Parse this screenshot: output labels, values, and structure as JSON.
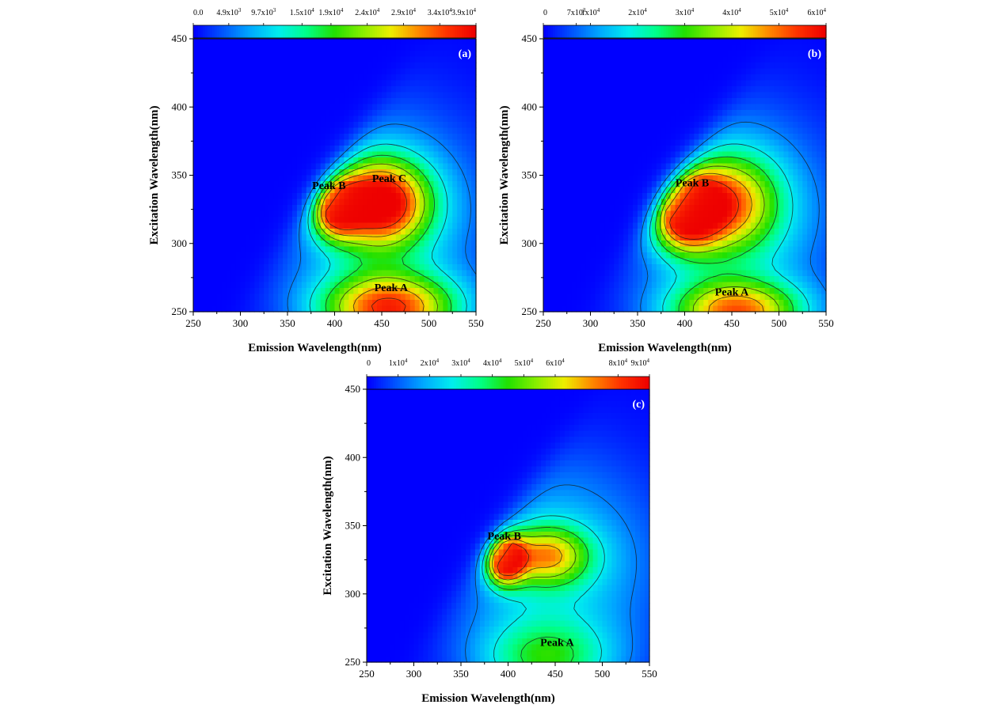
{
  "chart_data": [
    {
      "type": "heatmap",
      "panel": "(a)",
      "xlabel": "Emission Wavelength(nm)",
      "ylabel": "Excitation Wavelength(nm)",
      "xlim": [
        250,
        550
      ],
      "ylim": [
        250,
        450
      ],
      "xticks": [
        "250",
        "300",
        "350",
        "400",
        "450",
        "500",
        "550"
      ],
      "yticks": [
        "250",
        "300",
        "350",
        "400",
        "450"
      ],
      "colorbar": {
        "range": [
          0,
          39000
        ],
        "tick_values": [
          0,
          4900,
          9700,
          15000,
          19000,
          24000,
          29000,
          34000,
          39000
        ],
        "ticks": [
          {
            "base": "0.0",
            "exp": ""
          },
          {
            "base": "4.9x10",
            "exp": "3"
          },
          {
            "base": "9.7x10",
            "exp": "3"
          },
          {
            "base": "1.5x10",
            "exp": "4"
          },
          {
            "base": "1.9x10",
            "exp": "4"
          },
          {
            "base": "2.4x10",
            "exp": "4"
          },
          {
            "base": "2.9x10",
            "exp": "4"
          },
          {
            "base": "3.4x10",
            "exp": "4"
          },
          {
            "base": "3.9x10",
            "exp": "4"
          }
        ]
      },
      "peaks": [
        {
          "name": "Peak B",
          "em": 400,
          "ex": 327,
          "amp": 0.72,
          "sx": 18,
          "sy": 15,
          "label_em": 394,
          "label_ex": 340
        },
        {
          "name": "Peak C",
          "em": 448,
          "ex": 330,
          "amp": 0.88,
          "sx": 36,
          "sy": 22,
          "label_em": 458,
          "label_ex": 345
        },
        {
          "name": "Peak A",
          "em": 458,
          "ex": 252,
          "amp": 0.82,
          "sx": 52,
          "sy": 18,
          "label_em": 460,
          "label_ex": 265
        }
      ]
    },
    {
      "type": "heatmap",
      "panel": "(b)",
      "xlabel": "Emission Wavelength(nm)",
      "ylabel": "Excitation Wavelength(nm)",
      "xlim": [
        250,
        550
      ],
      "ylim": [
        250,
        450
      ],
      "xticks": [
        "250",
        "300",
        "350",
        "400",
        "450",
        "500",
        "550"
      ],
      "yticks": [
        "250",
        "300",
        "350",
        "400",
        "450"
      ],
      "colorbar": {
        "range": [
          0,
          60000
        ],
        "tick_values": [
          0,
          7000,
          10000,
          20000,
          30000,
          40000,
          50000,
          60000
        ],
        "ticks": [
          {
            "base": "0",
            "exp": ""
          },
          {
            "base": "7x10",
            "exp": "3"
          },
          {
            "base": "1x10",
            "exp": "4"
          },
          {
            "base": "2x10",
            "exp": "4"
          },
          {
            "base": "3x10",
            "exp": "4"
          },
          {
            "base": "4x10",
            "exp": "4"
          },
          {
            "base": "5x10",
            "exp": "4"
          },
          {
            "base": "6x10",
            "exp": "4"
          }
        ]
      },
      "peaks": [
        {
          "name": "Peak B",
          "em": 400,
          "ex": 325,
          "amp": 1.0,
          "sx": 26,
          "sy": 20,
          "label_em": 408,
          "label_ex": 342
        },
        {
          "name": "",
          "em": 450,
          "ex": 330,
          "amp": 0.55,
          "sx": 36,
          "sy": 25,
          "label_em": 0,
          "label_ex": 0
        },
        {
          "name": "Peak A",
          "em": 455,
          "ex": 250,
          "amp": 0.75,
          "sx": 50,
          "sy": 16,
          "label_em": 450,
          "label_ex": 262
        }
      ]
    },
    {
      "type": "heatmap",
      "panel": "(c)",
      "xlabel": "Emission Wavelength(nm)",
      "ylabel": "Excitation Wavelength(nm)",
      "xlim": [
        250,
        550
      ],
      "ylim": [
        250,
        450
      ],
      "xticks": [
        "250",
        "300",
        "350",
        "400",
        "450",
        "500",
        "550"
      ],
      "yticks": [
        "250",
        "300",
        "350",
        "400",
        "450"
      ],
      "colorbar": {
        "range": [
          0,
          90000
        ],
        "tick_values": [
          0,
          10000,
          20000,
          30000,
          40000,
          50000,
          60000,
          80000,
          90000
        ],
        "ticks": [
          {
            "base": "0",
            "exp": ""
          },
          {
            "base": "1x10",
            "exp": "4"
          },
          {
            "base": "2x10",
            "exp": "4"
          },
          {
            "base": "3x10",
            "exp": "4"
          },
          {
            "base": "4x10",
            "exp": "4"
          },
          {
            "base": "5x10",
            "exp": "4"
          },
          {
            "base": "6x10",
            "exp": "4"
          },
          {
            "base": "8x10",
            "exp": "4"
          },
          {
            "base": "9x10",
            "exp": "4"
          }
        ]
      },
      "peaks": [
        {
          "name": "Peak B",
          "em": 396,
          "ex": 326,
          "amp": 1.0,
          "sx": 14,
          "sy": 12,
          "label_em": 396,
          "label_ex": 340
        },
        {
          "name": "",
          "em": 440,
          "ex": 328,
          "amp": 0.55,
          "sx": 32,
          "sy": 15,
          "label_em": 0,
          "label_ex": 0
        },
        {
          "name": "Peak A",
          "em": 440,
          "ex": 252,
          "amp": 0.38,
          "sx": 50,
          "sy": 20,
          "label_em": 452,
          "label_ex": 262
        }
      ]
    }
  ],
  "colormap": [
    "#0000ff",
    "#0055ff",
    "#00aaff",
    "#00eeee",
    "#00ff88",
    "#22e000",
    "#88ee00",
    "#eeee00",
    "#ff8800",
    "#ff3300",
    "#ee0000"
  ]
}
